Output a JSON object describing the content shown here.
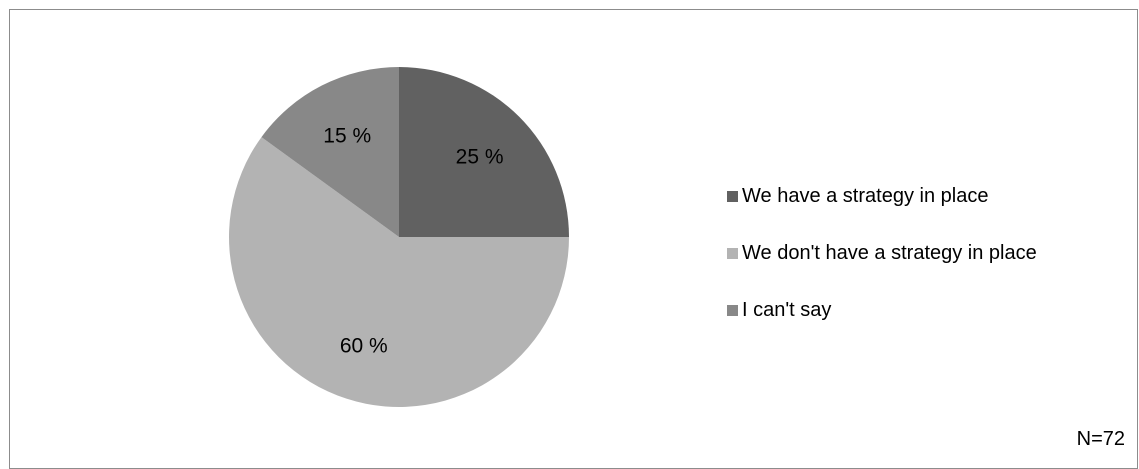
{
  "chart_data": {
    "type": "pie",
    "slices": [
      {
        "label": "We have a strategy in place",
        "value": 25,
        "value_label": "25 %",
        "color": "#616161"
      },
      {
        "label": "We don't have a strategy in place",
        "value": 60,
        "value_label": "60 %",
        "color": "#b3b3b3"
      },
      {
        "label": "I can't say",
        "value": 15,
        "value_label": "15 %",
        "color": "#888888"
      }
    ],
    "legend_position": "right",
    "note": "N=72"
  }
}
